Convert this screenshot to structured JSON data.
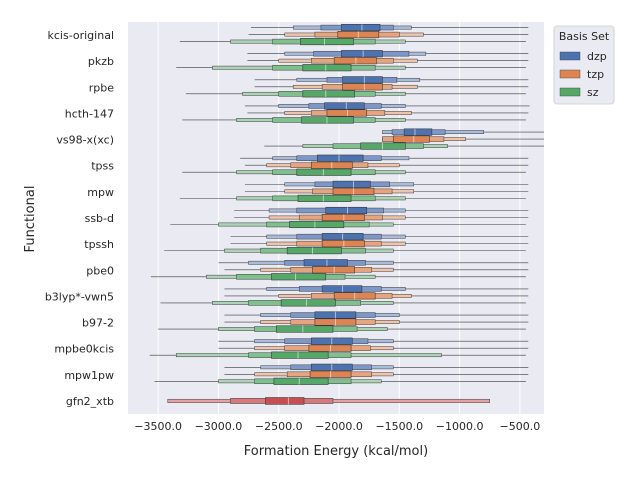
{
  "chart_data": {
    "type": "boxenplot",
    "orientation": "horizontal",
    "title": "",
    "xlabel": "Formation Energy (kcal/mol)",
    "ylabel": "Functional",
    "xlim": [
      -3750,
      -300
    ],
    "xticks": [
      -3500,
      -3000,
      -2500,
      -2000,
      -1500,
      -1000,
      -500
    ],
    "xtick_labels": [
      "−3500.0",
      "−3000.0",
      "−2500.0",
      "−2000.0",
      "−1500.0",
      "−1000.0",
      "−500.0"
    ],
    "grid": true,
    "legend": {
      "title": "Basis Set",
      "position": "top-right-outside",
      "entries": [
        {
          "name": "dzp",
          "color": "#4c72b0"
        },
        {
          "name": "tzp",
          "color": "#dd8452"
        },
        {
          "name": "sz",
          "color": "#55a868"
        }
      ]
    },
    "categories": [
      "kcis-original",
      "pkzb",
      "rpbe",
      "hcth-147",
      "vs98-x(xc)",
      "tpss",
      "mpw",
      "ssb-d",
      "tpssh",
      "pbe0",
      "b3lyp*-vwn5",
      "b97-2",
      "mpbe0kcis",
      "mpw1pw",
      "gfn2_xtb"
    ],
    "series": [
      {
        "name": "dzp",
        "boxes": [
          {
            "min": -2730,
            "q1": -1980,
            "median": -1810,
            "q3": -1660,
            "max": -430,
            "l2": [
              -2150,
              -1550
            ],
            "l3": [
              -2380,
              -1400
            ]
          },
          {
            "min": -2760,
            "q1": -1980,
            "median": -1800,
            "q3": -1640,
            "max": -430,
            "l2": [
              -2210,
              -1420
            ],
            "l3": [
              -2450,
              -1280
            ]
          },
          {
            "min": -2700,
            "q1": -1970,
            "median": -1790,
            "q3": -1640,
            "max": -430,
            "l2": [
              -2100,
              -1520
            ],
            "l3": [
              -2350,
              -1330
            ]
          },
          {
            "min": -2780,
            "q1": -2120,
            "median": -1940,
            "q3": -1790,
            "max": -420,
            "l2": [
              -2250,
              -1650
            ],
            "l3": [
              -2500,
              -1450
            ]
          },
          {
            "min": -1640,
            "q1": -1460,
            "median": -1370,
            "q3": -1230,
            "max": -300,
            "l2": [
              -1560,
              -1120
            ],
            "l3": [
              -1640,
              -800
            ]
          },
          {
            "min": -2820,
            "q1": -2180,
            "median": -2000,
            "q3": -1800,
            "max": -430,
            "l2": [
              -2350,
              -1650
            ],
            "l3": [
              -2550,
              -1420
            ]
          },
          {
            "min": -2780,
            "q1": -2050,
            "median": -1880,
            "q3": -1740,
            "max": -430,
            "l2": [
              -2200,
              -1580
            ],
            "l3": [
              -2450,
              -1380
            ]
          },
          {
            "min": -2870,
            "q1": -2110,
            "median": -1930,
            "q3": -1770,
            "max": -430,
            "l2": [
              -2350,
              -1630
            ],
            "l3": [
              -2580,
              -1450
            ]
          },
          {
            "min": -2900,
            "q1": -2140,
            "median": -1970,
            "q3": -1800,
            "max": -430,
            "l2": [
              -2350,
              -1650
            ],
            "l3": [
              -2600,
              -1450
            ]
          },
          {
            "min": -3000,
            "q1": -2290,
            "median": -2100,
            "q3": -1930,
            "max": -430,
            "l2": [
              -2450,
              -1780
            ],
            "l3": [
              -2750,
              -1550
            ]
          },
          {
            "min": -2950,
            "q1": -2140,
            "median": -1970,
            "q3": -1810,
            "max": -430,
            "l2": [
              -2330,
              -1650
            ],
            "l3": [
              -2600,
              -1450
            ]
          },
          {
            "min": -2950,
            "q1": -2200,
            "median": -2030,
            "q3": -1860,
            "max": -430,
            "l2": [
              -2400,
              -1700
            ],
            "l3": [
              -2650,
              -1500
            ]
          },
          {
            "min": -3000,
            "q1": -2230,
            "median": -2060,
            "q3": -1890,
            "max": -430,
            "l2": [
              -2450,
              -1760
            ],
            "l3": [
              -2700,
              -1550
            ]
          },
          {
            "min": -2950,
            "q1": -2230,
            "median": -2060,
            "q3": -1890,
            "max": -430,
            "l2": [
              -2400,
              -1730
            ],
            "l3": [
              -2650,
              -1550
            ]
          }
        ]
      },
      {
        "name": "tzp",
        "boxes": [
          {
            "min": -2750,
            "q1": -2010,
            "median": -1840,
            "q3": -1670,
            "max": -430,
            "l2": [
              -2200,
              -1500
            ],
            "l3": [
              -2450,
              -1300
            ]
          },
          {
            "min": -2760,
            "q1": -2040,
            "median": -1860,
            "q3": -1690,
            "max": -430,
            "l2": [
              -2230,
              -1550
            ],
            "l3": [
              -2500,
              -1350
            ]
          },
          {
            "min": -2700,
            "q1": -1970,
            "median": -1790,
            "q3": -1640,
            "max": -430,
            "l2": [
              -2140,
              -1560
            ],
            "l3": [
              -2380,
              -1350
            ]
          },
          {
            "min": -2760,
            "q1": -2100,
            "median": -1930,
            "q3": -1770,
            "max": -430,
            "l2": [
              -2230,
              -1620
            ],
            "l3": [
              -2450,
              -1400
            ]
          },
          {
            "min": -1640,
            "q1": -1550,
            "median": -1380,
            "q3": -1250,
            "max": -300,
            "l2": [
              -1640,
              -1130
            ],
            "l3": [
              -1640,
              -950
            ]
          },
          {
            "min": -2780,
            "q1": -2230,
            "median": -2060,
            "q3": -1890,
            "max": -430,
            "l2": [
              -2400,
              -1760
            ],
            "l3": [
              -2600,
              -1500
            ]
          },
          {
            "min": -2780,
            "q1": -2050,
            "median": -1880,
            "q3": -1710,
            "max": -430,
            "l2": [
              -2220,
              -1560
            ],
            "l3": [
              -2450,
              -1380
            ]
          },
          {
            "min": -2870,
            "q1": -2140,
            "median": -1960,
            "q3": -1790,
            "max": -430,
            "l2": [
              -2330,
              -1640
            ],
            "l3": [
              -2580,
              -1450
            ]
          },
          {
            "min": -2900,
            "q1": -2140,
            "median": -1960,
            "q3": -1790,
            "max": -430,
            "l2": [
              -2350,
              -1650
            ],
            "l3": [
              -2600,
              -1450
            ]
          },
          {
            "min": -2950,
            "q1": -2220,
            "median": -2040,
            "q3": -1870,
            "max": -430,
            "l2": [
              -2400,
              -1730
            ],
            "l3": [
              -2650,
              -1550
            ]
          },
          {
            "min": -2950,
            "q1": -2040,
            "median": -1870,
            "q3": -1700,
            "max": -430,
            "l2": [
              -2230,
              -1560
            ],
            "l3": [
              -2500,
              -1400
            ]
          },
          {
            "min": -2950,
            "q1": -2200,
            "median": -2030,
            "q3": -1860,
            "max": -430,
            "l2": [
              -2400,
              -1700
            ],
            "l3": [
              -2650,
              -1500
            ]
          },
          {
            "min": -3000,
            "q1": -2250,
            "median": -2070,
            "q3": -1900,
            "max": -430,
            "l2": [
              -2450,
              -1740
            ],
            "l3": [
              -2700,
              -1550
            ]
          },
          {
            "min": -2950,
            "q1": -2240,
            "median": -2070,
            "q3": -1900,
            "max": -430,
            "l2": [
              -2430,
              -1730
            ],
            "l3": [
              -2700,
              -1550
            ]
          }
        ]
      },
      {
        "name": "sz",
        "boxes": [
          {
            "min": -3320,
            "q1": -2320,
            "median": -2120,
            "q3": -1880,
            "max": -450,
            "l2": [
              -2550,
              -1700
            ],
            "l3": [
              -2900,
              -1450
            ]
          },
          {
            "min": -3350,
            "q1": -2300,
            "median": -2110,
            "q3": -1900,
            "max": -450,
            "l2": [
              -2550,
              -1700
            ],
            "l3": [
              -3050,
              -1450
            ]
          },
          {
            "min": -3270,
            "q1": -2300,
            "median": -2110,
            "q3": -1870,
            "max": -450,
            "l2": [
              -2500,
              -1700
            ],
            "l3": [
              -2800,
              -1450
            ]
          },
          {
            "min": -3300,
            "q1": -2310,
            "median": -2100,
            "q3": -1880,
            "max": -450,
            "l2": [
              -2550,
              -1700
            ],
            "l3": [
              -2850,
              -1450
            ]
          },
          {
            "min": -2620,
            "q1": -1820,
            "median": -1640,
            "q3": -1450,
            "max": -300,
            "l2": [
              -2050,
              -1300
            ],
            "l3": [
              -2300,
              -1100
            ]
          },
          {
            "min": -3300,
            "q1": -2350,
            "median": -2130,
            "q3": -1900,
            "max": -450,
            "l2": [
              -2550,
              -1700
            ],
            "l3": [
              -2850,
              -1450
            ]
          },
          {
            "min": -3320,
            "q1": -2340,
            "median": -2130,
            "q3": -1900,
            "max": -450,
            "l2": [
              -2550,
              -1700
            ],
            "l3": [
              -2850,
              -1450
            ]
          },
          {
            "min": -3400,
            "q1": -2410,
            "median": -2200,
            "q3": -1960,
            "max": -450,
            "l2": [
              -2600,
              -1750
            ],
            "l3": [
              -3000,
              -1550
            ]
          },
          {
            "min": -3450,
            "q1": -2430,
            "median": -2220,
            "q3": -1980,
            "max": -450,
            "l2": [
              -2650,
              -1780
            ],
            "l3": [
              -2950,
              -1550
            ]
          },
          {
            "min": -3560,
            "q1": -2560,
            "median": -2360,
            "q3": -2110,
            "max": -450,
            "l2": [
              -2850,
              -1950
            ],
            "l3": [
              -3100,
              -1700
            ]
          },
          {
            "min": -3480,
            "q1": -2480,
            "median": -2270,
            "q3": -2030,
            "max": -450,
            "l2": [
              -2750,
              -1820
            ],
            "l3": [
              -3050,
              -1550
            ]
          },
          {
            "min": -3500,
            "q1": -2520,
            "median": -2300,
            "q3": -2050,
            "max": -450,
            "l2": [
              -2700,
              -1850
            ],
            "l3": [
              -3000,
              -1600
            ]
          },
          {
            "min": -3570,
            "q1": -2560,
            "median": -2340,
            "q3": -2090,
            "max": -450,
            "l2": [
              -2750,
              -1900
            ],
            "l3": [
              -3350,
              -1150
            ]
          },
          {
            "min": -3530,
            "q1": -2540,
            "median": -2330,
            "q3": -2090,
            "max": -450,
            "l2": [
              -2700,
              -1900
            ],
            "l3": [
              -3000,
              -1650
            ]
          }
        ]
      },
      {
        "name": "gfn2_xtb",
        "color": "#c44e52",
        "category": "gfn2_xtb",
        "boxes": [
          {
            "min": -3420,
            "q1": -2610,
            "median": -2420,
            "q3": -2290,
            "max": -750,
            "l2": [
              -2900,
              -2050
            ],
            "l3": [
              -3420,
              -750
            ]
          }
        ]
      }
    ]
  }
}
